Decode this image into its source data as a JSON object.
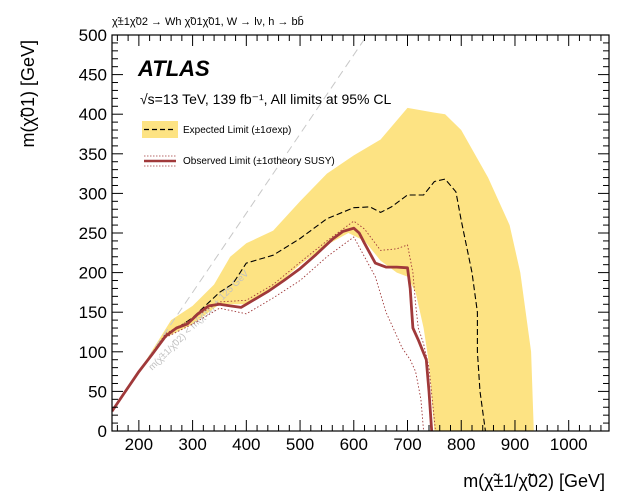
{
  "process_label": "χ̃±1χ̃02 → Wh χ̃01χ̃01, W → lν, h → bb̄",
  "atlas_label": "ATLAS",
  "energy_label": "√s=13 TeV, 139 fb⁻¹, All limits at 95% CL",
  "kinematic_label": "m(χ̃±1/χ̃02) < m(χ̃01) + 125 GeV",
  "colors": {
    "band": "#fde383",
    "observed": "#a0393a",
    "expected": "#000000",
    "kinematic": "#c8c8c8"
  },
  "chart_data": {
    "type": "line",
    "title": "",
    "xlabel": "m(χ̃±1/χ̃02) [GeV]",
    "ylabel": "m(χ̃01) [GeV]",
    "xlim": [
      150,
      1075
    ],
    "ylim": [
      0,
      500
    ],
    "xticks": [
      200,
      300,
      400,
      500,
      600,
      700,
      800,
      900,
      1000
    ],
    "yticks": [
      0,
      50,
      100,
      150,
      200,
      250,
      300,
      350,
      400,
      450,
      500
    ],
    "grid": false,
    "legend_position": "top-left",
    "legend": [
      {
        "label": "Expected Limit (±1σexp)",
        "style": "dashed black with yellow band"
      },
      {
        "label": "Observed Limit (±1σtheory SUSY)",
        "style": "solid red with dotted red"
      }
    ],
    "kinematic_limit": {
      "label": "m(χ̃±1/χ̃02) < m(χ̃01) + 125 GeV",
      "x": [
        150,
        625
      ],
      "y": [
        25,
        500
      ]
    },
    "series": [
      {
        "name": "Observed Limit",
        "style": "solid",
        "x": [
          150,
          175,
          200,
          225,
          250,
          270,
          290,
          310,
          330,
          350,
          370,
          390,
          400,
          420,
          440,
          470,
          500,
          530,
          560,
          580,
          600,
          610,
          620,
          640,
          660,
          680,
          700,
          705,
          708,
          710,
          720,
          735,
          740,
          745
        ],
        "y": [
          25,
          50,
          75,
          97,
          120,
          130,
          135,
          148,
          158,
          160,
          158,
          156,
          160,
          168,
          176,
          190,
          205,
          223,
          242,
          252,
          256,
          250,
          237,
          212,
          207,
          207,
          206,
          180,
          150,
          130,
          115,
          90,
          50,
          0
        ]
      },
      {
        "name": "Observed Limit −1σ theory",
        "style": "dotted",
        "x": [
          150,
          200,
          250,
          300,
          350,
          400,
          450,
          500,
          550,
          580,
          600,
          620,
          640,
          660,
          680,
          690,
          695,
          705,
          715,
          725,
          730
        ],
        "y": [
          25,
          75,
          118,
          135,
          155,
          148,
          168,
          190,
          220,
          235,
          245,
          220,
          195,
          150,
          120,
          105,
          100,
          90,
          75,
          40,
          0
        ]
      },
      {
        "name": "Observed Limit +1σ theory",
        "style": "dotted",
        "x": [
          150,
          200,
          250,
          300,
          350,
          400,
          450,
          500,
          550,
          580,
          600,
          620,
          650,
          680,
          700,
          710,
          715,
          720,
          730,
          740,
          752
        ],
        "y": [
          25,
          75,
          123,
          142,
          163,
          165,
          185,
          213,
          240,
          255,
          265,
          255,
          228,
          230,
          235,
          200,
          160,
          130,
          110,
          80,
          0
        ]
      },
      {
        "name": "Expected Limit",
        "style": "dashed",
        "x": [
          150,
          200,
          250,
          300,
          350,
          375,
          400,
          450,
          500,
          550,
          600,
          630,
          650,
          670,
          700,
          730,
          750,
          770,
          790,
          800,
          820,
          830,
          830,
          835,
          845
        ],
        "y": [
          25,
          75,
          120,
          143,
          175,
          186,
          212,
          222,
          243,
          268,
          282,
          283,
          276,
          283,
          298,
          298,
          315,
          318,
          302,
          266,
          200,
          150,
          100,
          50,
          0
        ]
      },
      {
        "name": "Expected Limit ±1σ exp upper",
        "style": "band-edge",
        "x": [
          150,
          200,
          260,
          300,
          340,
          370,
          400,
          450,
          500,
          550,
          600,
          650,
          700,
          750,
          770,
          800,
          850,
          890,
          910,
          930,
          935
        ],
        "y": [
          25,
          75,
          140,
          158,
          185,
          220,
          237,
          253,
          290,
          325,
          348,
          368,
          408,
          402,
          400,
          380,
          320,
          260,
          200,
          100,
          0
        ]
      },
      {
        "name": "Expected Limit ±1σ exp lower",
        "style": "band-edge",
        "x": [
          150,
          200,
          250,
          300,
          350,
          400,
          450,
          500,
          550,
          590,
          620,
          650,
          680,
          700,
          715,
          730,
          740,
          745,
          750
        ],
        "y": [
          25,
          75,
          118,
          135,
          160,
          160,
          180,
          210,
          235,
          250,
          240,
          215,
          200,
          195,
          175,
          130,
          85,
          40,
          0
        ]
      }
    ]
  }
}
